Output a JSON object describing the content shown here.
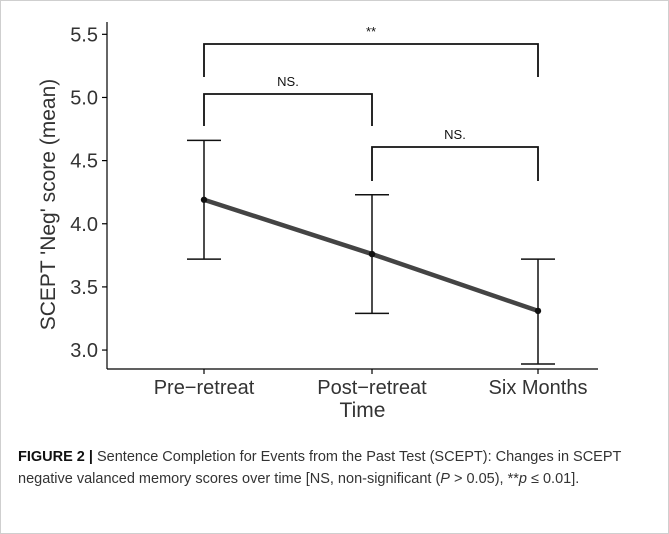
{
  "chart_data": {
    "type": "line",
    "x": [
      "Pre−retreat",
      "Post−retreat",
      "Six Months"
    ],
    "values": [
      4.19,
      3.76,
      3.31
    ],
    "error_low": [
      3.72,
      3.29,
      2.89
    ],
    "error_high": [
      4.66,
      4.23,
      3.72
    ],
    "xlabel": "Time",
    "ylabel": "SCEPT 'Neg' score (mean)",
    "ylim": [
      2.85,
      5.55
    ],
    "yticks": [
      "3.0",
      "3.5",
      "4.0",
      "4.5",
      "5.0",
      "5.5"
    ],
    "grid": false,
    "significance": [
      {
        "from": "Pre−retreat",
        "to": "Six Months",
        "label": "**"
      },
      {
        "from": "Pre−retreat",
        "to": "Post−retreat",
        "label": "NS."
      },
      {
        "from": "Post−retreat",
        "to": "Six Months",
        "label": "NS."
      }
    ],
    "colors": {
      "line": "#444444",
      "axis": "#000000",
      "text": "#333333"
    }
  },
  "caption": {
    "label": "FIGURE 2 |",
    "text": " Sentence Completion for Events from the Past Test (SCEPT): Changes in SCEPT negative valanced memory scores over time [NS, non-significant (",
    "p1": "P",
    "mid": " > 0.05), **",
    "p2": "p",
    "end": " ≤ 0.01]."
  }
}
